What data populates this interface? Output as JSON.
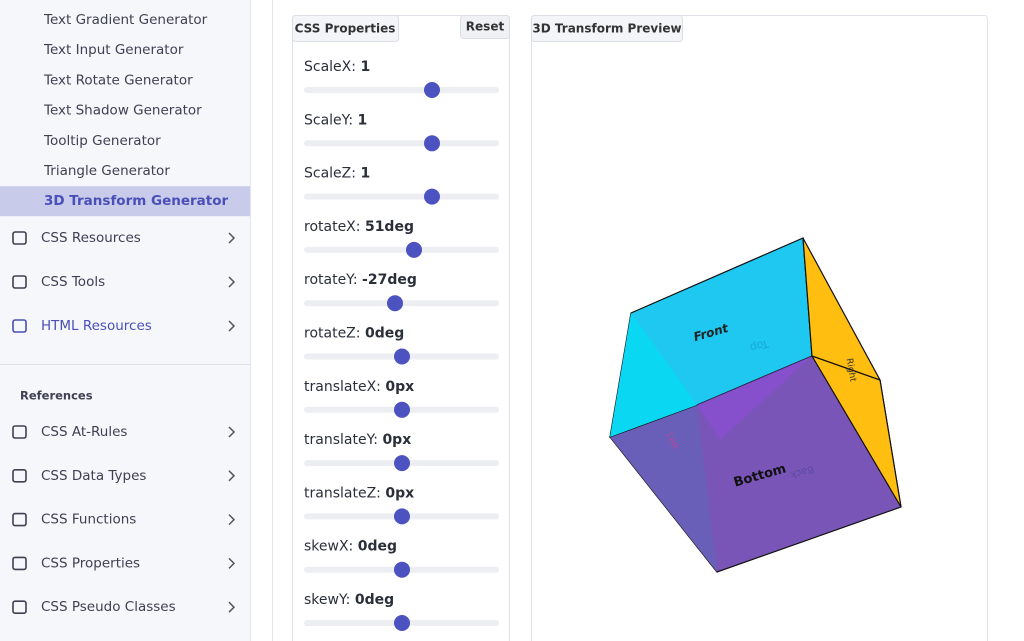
{
  "sidebar": {
    "items": [
      "Text Gradient Generator",
      "Text Input Generator",
      "Text Rotate Generator",
      "Text Shadow Generator",
      "Tooltip Generator",
      "Triangle Generator",
      "3D Transform Generator"
    ],
    "active": 6,
    "groups": [
      "CSS Resources",
      "CSS Tools",
      "HTML Resources"
    ],
    "references": {
      "title": "References",
      "items": [
        "CSS At-Rules",
        "CSS Data Types",
        "CSS Functions",
        "CSS Properties",
        "CSS Pseudo Classes"
      ]
    }
  },
  "properties": {
    "title": "CSS Properties",
    "reset": "Reset",
    "controls": [
      {
        "label": "ScaleX:",
        "value": "1"
      },
      {
        "label": "ScaleY:",
        "value": "1"
      },
      {
        "label": "ScaleZ:",
        "value": "1"
      },
      {
        "label": "rotateX:",
        "value": "51deg"
      },
      {
        "label": "rotateY:",
        "value": "-27deg"
      },
      {
        "label": "rotateZ:",
        "value": "0deg"
      },
      {
        "label": "translateX:",
        "value": "0px"
      },
      {
        "label": "translateY:",
        "value": "0px"
      },
      {
        "label": "translateZ:",
        "value": "0px"
      },
      {
        "label": "skewX:",
        "value": "0deg"
      },
      {
        "label": "skewY:",
        "value": "0deg"
      }
    ]
  },
  "preview": {
    "title": "3D Transform Preview",
    "faces": {
      "front": "Front",
      "top": "Top",
      "right": "Right",
      "left": "Left",
      "bottom": "Bottom",
      "back": "Back"
    }
  }
}
